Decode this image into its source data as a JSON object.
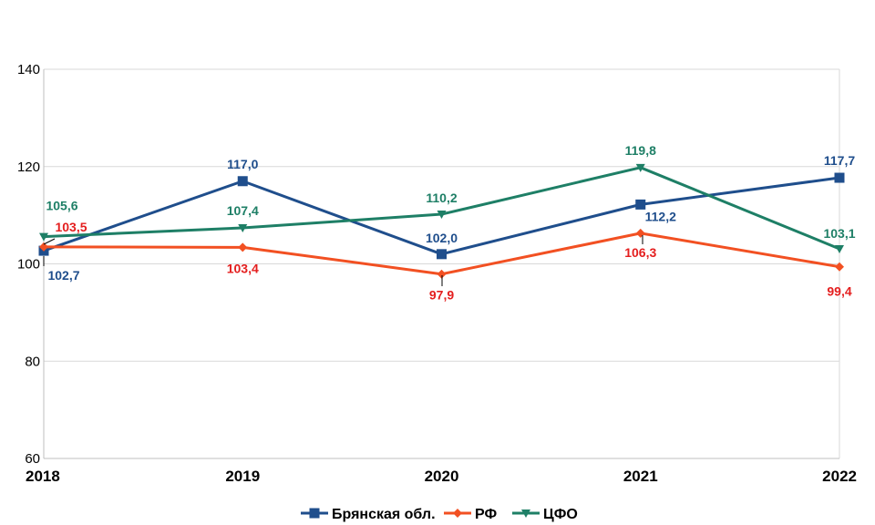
{
  "chart_data": {
    "type": "line",
    "title": "",
    "xlabel": "",
    "ylabel": "",
    "categories": [
      "2018",
      "2019",
      "2020",
      "2021",
      "2022"
    ],
    "ylim": [
      60,
      140
    ],
    "yticks": [
      60,
      80,
      100,
      120,
      140
    ],
    "grid": true,
    "legend_position": "bottom",
    "series": [
      {
        "name": "Брянская обл.",
        "color": "#1F4E8C",
        "marker": "square",
        "values": [
          102.7,
          117.0,
          102.0,
          112.2,
          117.7
        ],
        "labels": [
          "102,7",
          "117,0",
          "102,0",
          "112,2",
          "117,7"
        ]
      },
      {
        "name": "РФ",
        "color": "#F25022",
        "label_color": "#E41E1E",
        "marker": "diamond",
        "values": [
          103.5,
          103.4,
          97.9,
          106.3,
          99.4
        ],
        "labels": [
          "103,5",
          "103,4",
          "97,9",
          "106,3",
          "99,4"
        ]
      },
      {
        "name": "ЦФО",
        "color": "#1E7F66",
        "marker": "triangle-down",
        "values": [
          105.6,
          107.4,
          110.2,
          119.8,
          103.1
        ],
        "labels": [
          "105,6",
          "107,4",
          "110,2",
          "119,8",
          "103,1"
        ]
      }
    ]
  }
}
